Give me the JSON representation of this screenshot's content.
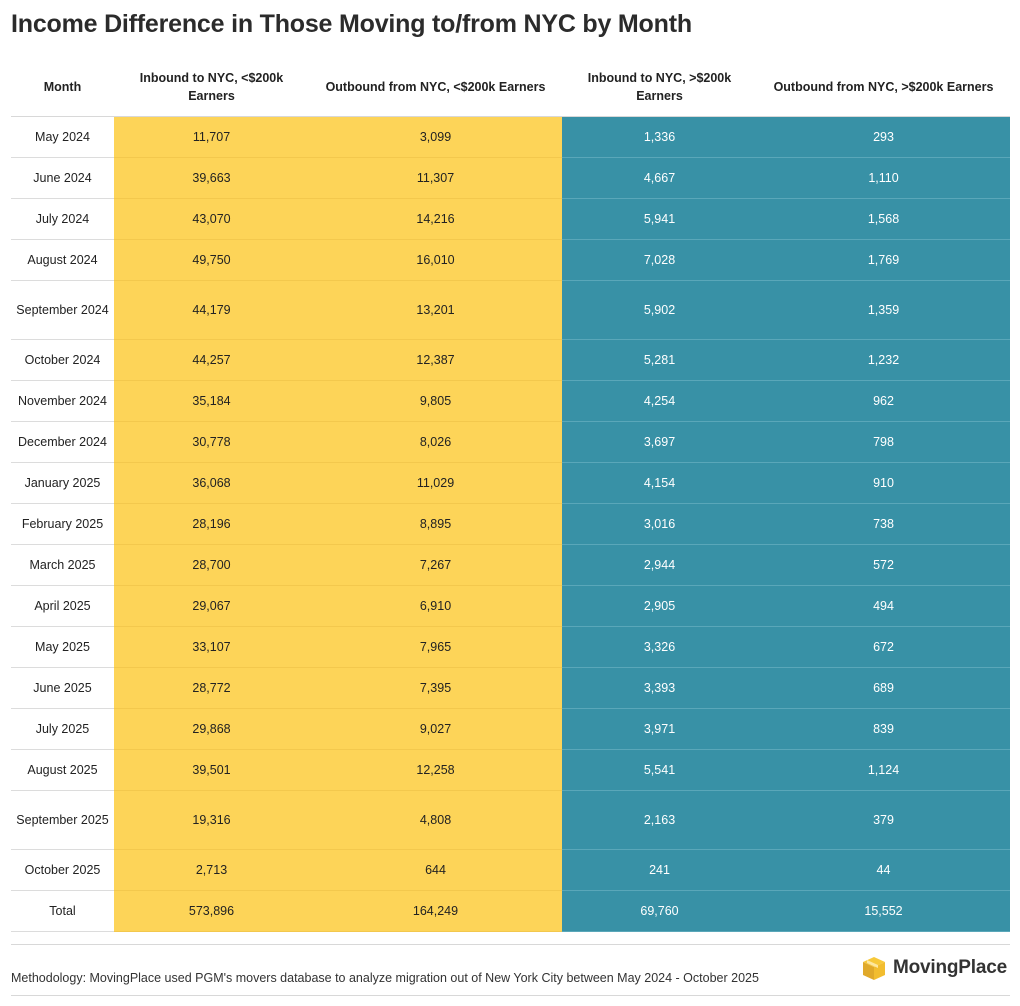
{
  "title": "Income Difference in Those Moving to/from NYC by Month",
  "colors": {
    "yellow": "#fdd458",
    "teal": "#3891a6"
  },
  "chart_data": {
    "type": "table",
    "columns": [
      "Month",
      "Inbound to NYC, <$200k Earners",
      "Outbound from NYC, <$200k Earners",
      "Inbound to NYC, >$200k Earners",
      "Outbound from NYC, >$200k Earners"
    ],
    "rows": [
      [
        "May 2024",
        "11,707",
        "3,099",
        "1,336",
        "293"
      ],
      [
        "June 2024",
        "39,663",
        "11,307",
        "4,667",
        "1,110"
      ],
      [
        "July 2024",
        "43,070",
        "14,216",
        "5,941",
        "1,568"
      ],
      [
        "August 2024",
        "49,750",
        "16,010",
        "7,028",
        "1,769"
      ],
      [
        "September 2024",
        "44,179",
        "13,201",
        "5,902",
        "1,359"
      ],
      [
        "October 2024",
        "44,257",
        "12,387",
        "5,281",
        "1,232"
      ],
      [
        "November 2024",
        "35,184",
        "9,805",
        "4,254",
        "962"
      ],
      [
        "December 2024",
        "30,778",
        "8,026",
        "3,697",
        "798"
      ],
      [
        "January 2025",
        "36,068",
        "11,029",
        "4,154",
        "910"
      ],
      [
        "February 2025",
        "28,196",
        "8,895",
        "3,016",
        "738"
      ],
      [
        "March 2025",
        "28,700",
        "7,267",
        "2,944",
        "572"
      ],
      [
        "April 2025",
        "29,067",
        "6,910",
        "2,905",
        "494"
      ],
      [
        "May 2025",
        "33,107",
        "7,965",
        "3,326",
        "672"
      ],
      [
        "June 2025",
        "28,772",
        "7,395",
        "3,393",
        "689"
      ],
      [
        "July 2025",
        "29,868",
        "9,027",
        "3,971",
        "839"
      ],
      [
        "August 2025",
        "39,501",
        "12,258",
        "5,541",
        "1,124"
      ],
      [
        "September 2025",
        "19,316",
        "4,808",
        "2,163",
        "379"
      ],
      [
        "October 2025",
        "2,713",
        "644",
        "241",
        "44"
      ],
      [
        "Total",
        "573,896",
        "164,249",
        "69,760",
        "15,552"
      ]
    ]
  },
  "footer": {
    "methodology": "Methodology: MovingPlace used PGM's movers database to analyze migration out of New York City between May 2024 - October 2025",
    "logo_text": "MovingPlace",
    "logo_icon": "box-icon"
  }
}
